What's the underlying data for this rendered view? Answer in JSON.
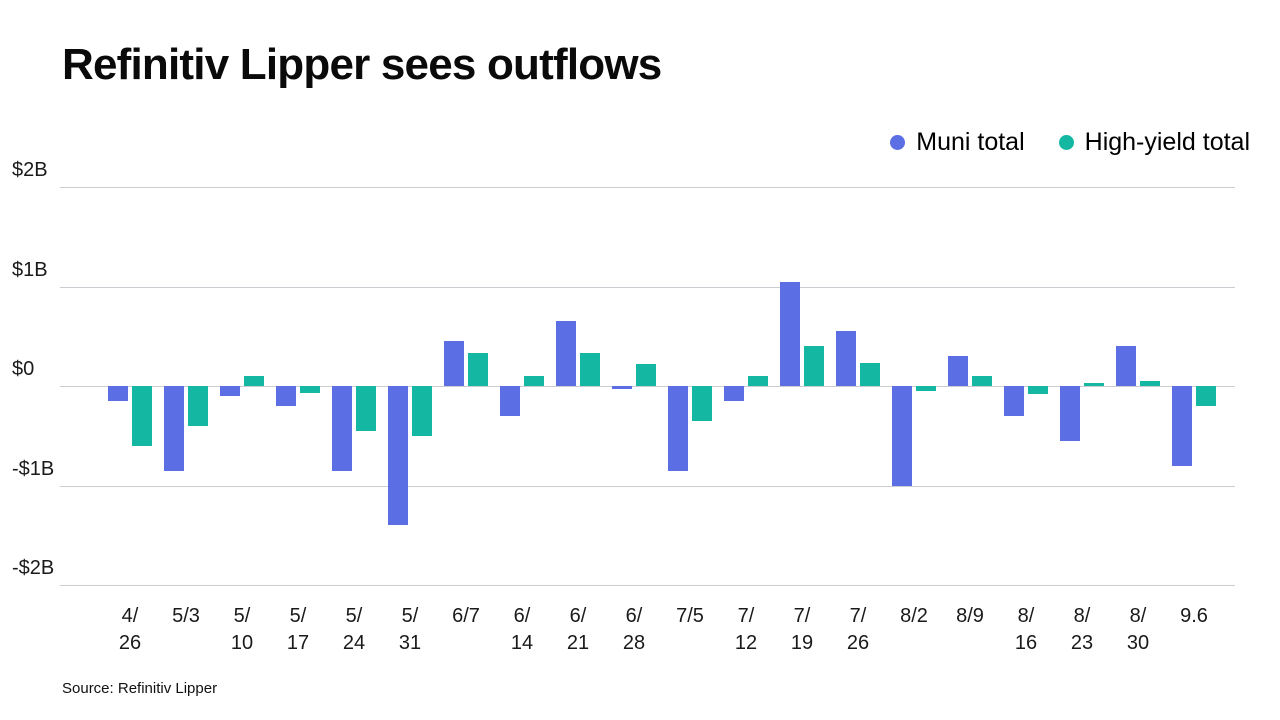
{
  "header": {
    "title": "Refinitiv Lipper sees outflows"
  },
  "legend": [
    {
      "label": "Muni total",
      "color": "#5b6ee4"
    },
    {
      "label": "High-yield total",
      "color": "#14b8a2"
    }
  ],
  "source": "Source: Refinitiv Lipper",
  "chart_data": {
    "type": "bar",
    "title": "Refinitiv Lipper sees outflows",
    "xlabel": "",
    "ylabel": "",
    "ylim": [
      -2,
      2
    ],
    "yticks": [
      2,
      1,
      0,
      -1,
      -2
    ],
    "ytick_labels": [
      "$2B",
      "$1B",
      "$0",
      "-$1B",
      "-$2B"
    ],
    "grid": true,
    "legend_position": "top-right",
    "categories": [
      "4/26",
      "5/3",
      "5/10",
      "5/17",
      "5/24",
      "5/31",
      "6/7",
      "6/14",
      "6/21",
      "6/28",
      "7/5",
      "7/12",
      "7/19",
      "7/26",
      "8/2",
      "8/9",
      "8/16",
      "8/23",
      "8/30",
      "9.6"
    ],
    "series": [
      {
        "name": "Muni total",
        "color": "#5b6ee4",
        "values": [
          -0.15,
          -0.85,
          -0.1,
          -0.2,
          -0.85,
          -1.4,
          0.45,
          -0.3,
          0.65,
          -0.03,
          -0.85,
          -0.15,
          1.05,
          0.55,
          -1.0,
          0.3,
          -0.3,
          -0.55,
          0.4,
          -0.8
        ]
      },
      {
        "name": "High-yield total",
        "color": "#14b8a2",
        "values": [
          -0.6,
          -0.4,
          0.1,
          -0.07,
          -0.45,
          -0.5,
          0.33,
          0.1,
          0.33,
          0.22,
          -0.35,
          0.1,
          0.4,
          0.23,
          -0.05,
          0.1,
          -0.08,
          0.03,
          0.05,
          -0.2
        ]
      }
    ]
  }
}
